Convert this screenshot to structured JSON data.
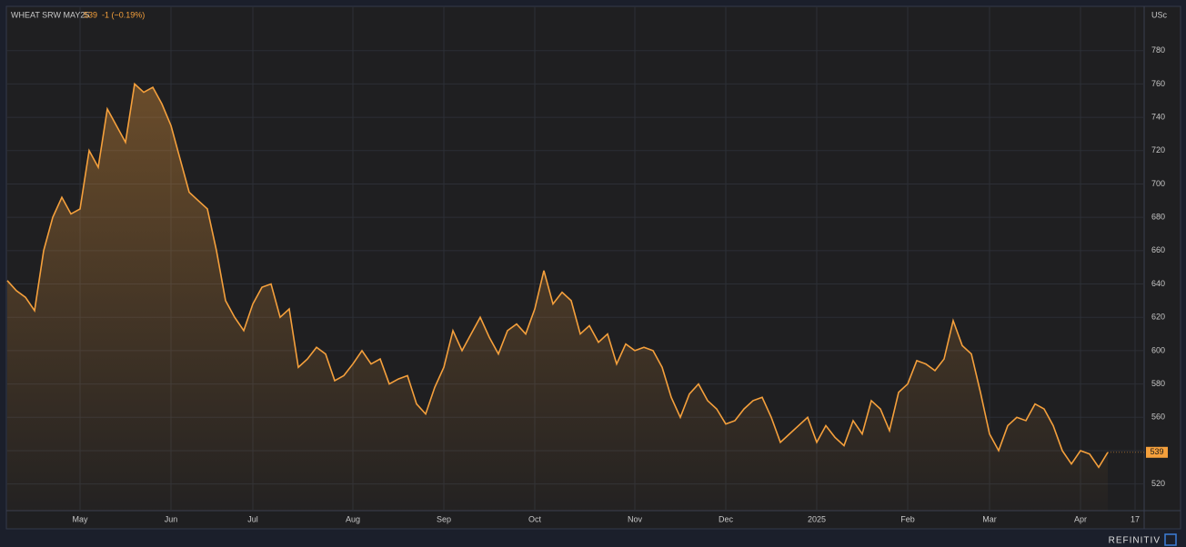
{
  "chart_data": {
    "type": "line",
    "title": "WHEAT SRW MAY25",
    "change": "-1 (−0.19%)",
    "unit": "USc",
    "brand": "REFINITIV",
    "categories": [
      null,
      null,
      null,
      null,
      null,
      null,
      null,
      null,
      "May",
      null,
      null,
      null,
      null,
      null,
      null,
      null,
      null,
      null,
      "Jun",
      null,
      null,
      null,
      null,
      null,
      null,
      null,
      null,
      "Jul",
      null,
      null,
      null,
      null,
      null,
      null,
      null,
      null,
      null,
      null,
      "Aug",
      null,
      null,
      null,
      null,
      null,
      null,
      null,
      null,
      null,
      "Sep",
      null,
      null,
      null,
      null,
      null,
      null,
      null,
      null,
      null,
      "Oct",
      null,
      null,
      null,
      null,
      null,
      null,
      null,
      null,
      null,
      null,
      "Nov",
      null,
      null,
      null,
      null,
      null,
      null,
      null,
      null,
      null,
      "Dec",
      null,
      null,
      null,
      null,
      null,
      null,
      null,
      null,
      null,
      "2025",
      null,
      null,
      null,
      null,
      null,
      null,
      null,
      null,
      null,
      "Feb",
      null,
      null,
      null,
      null,
      null,
      null,
      null,
      null,
      "Mar",
      null,
      null,
      null,
      null,
      null,
      null,
      null,
      null,
      null,
      "Apr",
      null,
      null,
      null,
      null,
      null,
      "17"
    ],
    "series": [
      {
        "name": "WHEAT SRW MAY25",
        "color": "#f5a03c",
        "values": [
          642,
          636,
          632,
          624,
          660,
          680,
          692,
          682,
          685,
          720,
          710,
          745,
          735,
          725,
          760,
          755,
          758,
          748,
          735,
          715,
          695,
          690,
          685,
          660,
          630,
          620,
          612,
          628,
          638,
          640,
          620,
          625,
          590,
          595,
          602,
          598,
          582,
          585,
          592,
          600,
          592,
          595,
          580,
          583,
          585,
          568,
          562,
          578,
          590,
          612,
          600,
          610,
          620,
          608,
          598,
          612,
          616,
          610,
          625,
          648,
          628,
          635,
          630,
          610,
          615,
          605,
          610,
          592,
          604,
          600,
          602,
          600,
          590,
          572,
          560,
          574,
          580,
          570,
          565,
          556,
          558,
          565,
          570,
          572,
          560,
          545,
          550,
          555,
          560,
          545,
          555,
          548,
          543,
          558,
          550,
          570,
          565,
          552,
          575,
          580,
          594,
          592,
          588,
          595,
          618,
          603,
          598,
          575,
          550,
          540,
          555,
          560,
          558,
          568,
          565,
          555,
          540,
          532,
          540,
          538,
          530,
          539,
          null,
          null,
          null
        ]
      }
    ],
    "ylim": [
      504,
      806
    ],
    "yticks": [
      520,
      540,
      560,
      580,
      600,
      620,
      640,
      660,
      680,
      700,
      720,
      740,
      760,
      780
    ],
    "grid": true
  }
}
